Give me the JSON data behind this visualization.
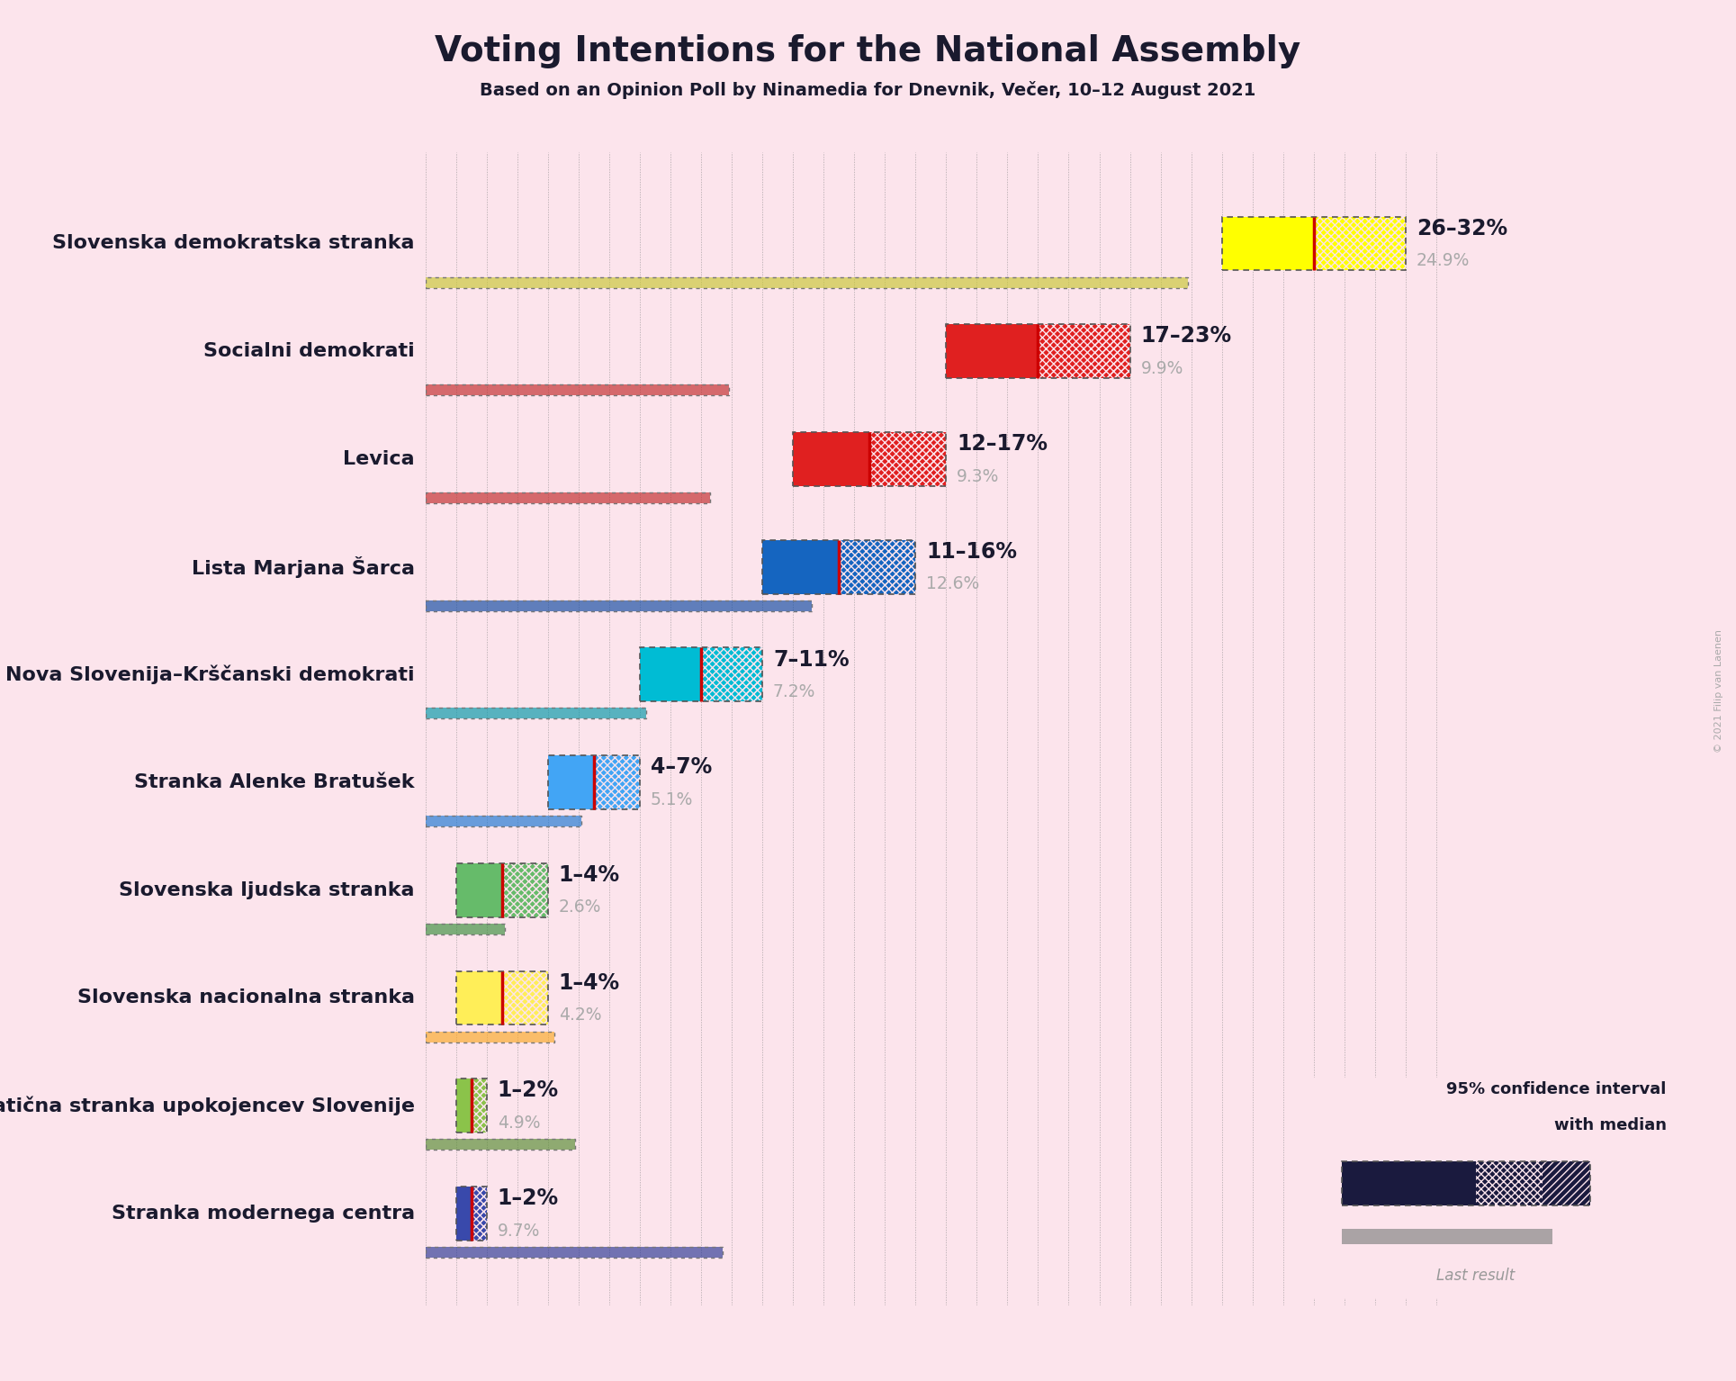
{
  "title": "Voting Intentions for the National Assembly",
  "subtitle": "Based on an Opinion Poll by Ninamedia for Dnevnik, Večer, 10–12 August 2021",
  "copyright": "© 2021 Filip van Laenen",
  "background_color": "#fce4ec",
  "parties": [
    {
      "name": "Slovenska demokratska stranka",
      "low": 26,
      "high": 32,
      "last": 24.9,
      "color": "#ffff00",
      "lcolor": "#c8c832",
      "label": "26–32%",
      "llabel": "24.9%"
    },
    {
      "name": "Socialni demokrati",
      "low": 17,
      "high": 23,
      "last": 9.9,
      "color": "#e02020",
      "lcolor": "#c02828",
      "label": "17–23%",
      "llabel": "9.9%"
    },
    {
      "name": "Levica",
      "low": 12,
      "high": 17,
      "last": 9.3,
      "color": "#e02020",
      "lcolor": "#c02828",
      "label": "12–17%",
      "llabel": "9.3%"
    },
    {
      "name": "Lista Marjana Šarca",
      "low": 11,
      "high": 16,
      "last": 12.6,
      "color": "#1565c0",
      "lcolor": "#0d47a1",
      "label": "11–16%",
      "llabel": "12.6%"
    },
    {
      "name": "Nova Slovenija–Krščanski demokrati",
      "low": 7,
      "high": 11,
      "last": 7.2,
      "color": "#00bcd4",
      "lcolor": "#0097a7",
      "label": "7–11%",
      "llabel": "7.2%"
    },
    {
      "name": "Stranka Alenke Bratušek",
      "low": 4,
      "high": 7,
      "last": 5.1,
      "color": "#42a5f5",
      "lcolor": "#1976d2",
      "label": "4–7%",
      "llabel": "5.1%"
    },
    {
      "name": "Slovenska ljudska stranka",
      "low": 1,
      "high": 4,
      "last": 2.6,
      "color": "#66bb6a",
      "lcolor": "#388e3c",
      "label": "1–4%",
      "llabel": "2.6%"
    },
    {
      "name": "Slovenska nacionalna stranka",
      "low": 1,
      "high": 4,
      "last": 4.2,
      "color": "#ffee58",
      "lcolor": "#f9a825",
      "label": "1–4%",
      "llabel": "4.2%"
    },
    {
      "name": "Demokratična stranka upokojencev Slovenije",
      "low": 1,
      "high": 2,
      "last": 4.9,
      "color": "#8bc34a",
      "lcolor": "#558b2f",
      "label": "1–2%",
      "llabel": "4.9%"
    },
    {
      "name": "Stranka modernega centra",
      "low": 1,
      "high": 2,
      "last": 9.7,
      "color": "#3949ab",
      "lcolor": "#283593",
      "label": "1–2%",
      "llabel": "9.7%"
    }
  ],
  "xmax": 34,
  "median_color": "#cc0000",
  "text_color": "#1a1a2e",
  "label_color": "#aaaaaa"
}
